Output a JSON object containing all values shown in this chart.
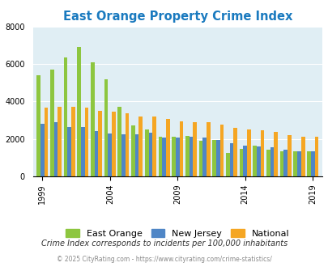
{
  "title": "East Orange Property Crime Index",
  "east_orange_vals": [
    5400,
    5700,
    6350,
    6900,
    6100,
    5200,
    3700,
    2700,
    2500,
    2100,
    2100,
    2150,
    1900,
    1950,
    1250,
    1450,
    1650,
    1400,
    1350,
    1350,
    1350
  ],
  "new_jersey_vals": [
    2800,
    2900,
    2650,
    2650,
    2400,
    2300,
    2250,
    2250,
    2350,
    2050,
    2050,
    2100,
    2050,
    1950,
    1750,
    1650,
    1600,
    1550,
    1400,
    1350,
    1350
  ],
  "national_vals": [
    3650,
    3700,
    3700,
    3650,
    3500,
    3450,
    3350,
    3200,
    3200,
    3050,
    2950,
    2900,
    2900,
    2750,
    2600,
    2500,
    2480,
    2380,
    2200,
    2100,
    2100
  ],
  "plot_years": [
    1999,
    2000,
    2001,
    2002,
    2003,
    2004,
    2005,
    2006,
    2007,
    2008,
    2009,
    2010,
    2011,
    2012,
    2013,
    2014,
    2015,
    2016,
    2017,
    2018,
    2019
  ],
  "color_east_orange": "#8dc63f",
  "color_new_jersey": "#4f86c6",
  "color_national": "#f5a623",
  "bg_color": "#e0eef4",
  "title_color": "#1a7abf",
  "ylim": [
    0,
    8000
  ],
  "yticks": [
    0,
    2000,
    4000,
    6000,
    8000
  ],
  "xtick_years": [
    1999,
    2004,
    2009,
    2014,
    2019
  ],
  "subtitle": "Crime Index corresponds to incidents per 100,000 inhabitants",
  "footer": "© 2025 CityRating.com - https://www.cityrating.com/crime-statistics/",
  "bar_width": 0.28,
  "legend_labels": [
    "East Orange",
    "New Jersey",
    "National"
  ]
}
